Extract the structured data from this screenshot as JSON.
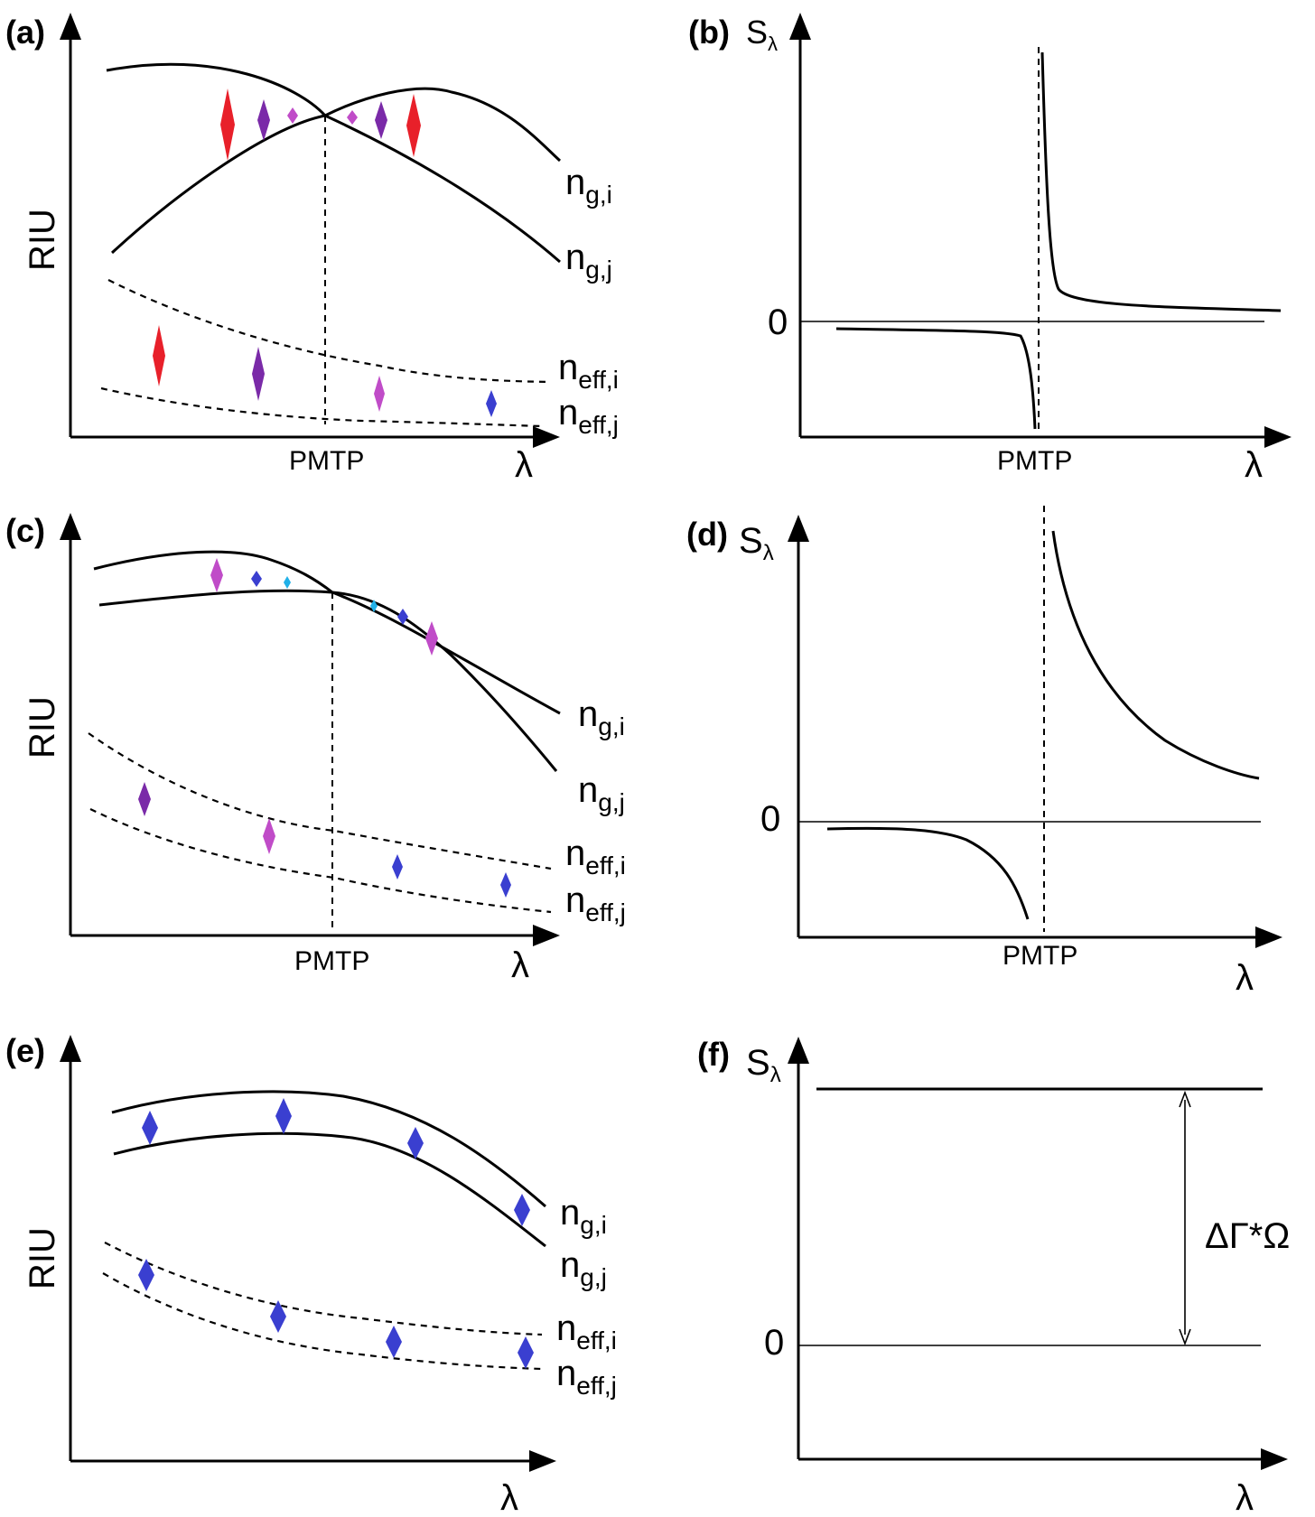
{
  "panels": {
    "a": {
      "label": "(a)",
      "y_label": "RIU",
      "x_label": "λ",
      "tick_label": "PMTP",
      "curves": {
        "ng_i": {
          "base": "n",
          "sub": "g,i"
        },
        "ng_j": {
          "base": "n",
          "sub": "g,j"
        },
        "neff_i": {
          "base": "n",
          "sub": "eff,i"
        },
        "neff_j": {
          "base": "n",
          "sub": "eff,j"
        }
      }
    },
    "b": {
      "label": "(b)",
      "y_label_base": "S",
      "y_label_sub": "λ",
      "x_label": "λ",
      "zero_label": "0",
      "tick_label": "PMTP"
    },
    "c": {
      "label": "(c)",
      "y_label": "RIU",
      "x_label": "λ",
      "tick_label": "PMTP",
      "curves": {
        "ng_i": {
          "base": "n",
          "sub": "g,i"
        },
        "ng_j": {
          "base": "n",
          "sub": "g,j"
        },
        "neff_i": {
          "base": "n",
          "sub": "eff,i"
        },
        "neff_j": {
          "base": "n",
          "sub": "eff,j"
        }
      }
    },
    "d": {
      "label": "(d)",
      "y_label_base": "S",
      "y_label_sub": "λ",
      "x_label": "λ",
      "zero_label": "0",
      "tick_label": "PMTP"
    },
    "e": {
      "label": "(e)",
      "y_label": "RIU",
      "x_label": "λ",
      "curves": {
        "ng_i": {
          "base": "n",
          "sub": "g,i"
        },
        "ng_j": {
          "base": "n",
          "sub": "g,j"
        },
        "neff_i": {
          "base": "n",
          "sub": "eff,i"
        },
        "neff_j": {
          "base": "n",
          "sub": "eff,j"
        }
      }
    },
    "f": {
      "label": "(f)",
      "y_label_base": "S",
      "y_label_sub": "λ",
      "x_label": "λ",
      "zero_label": "0",
      "annotation": "ΔΓ*Ω"
    }
  },
  "colors": {
    "red": "#e8202a",
    "purple": "#7a2aa8",
    "magenta": "#c04cc8",
    "blue": "#3a3fd0",
    "cyan": "#20b0e8",
    "ink": "#000000"
  }
}
